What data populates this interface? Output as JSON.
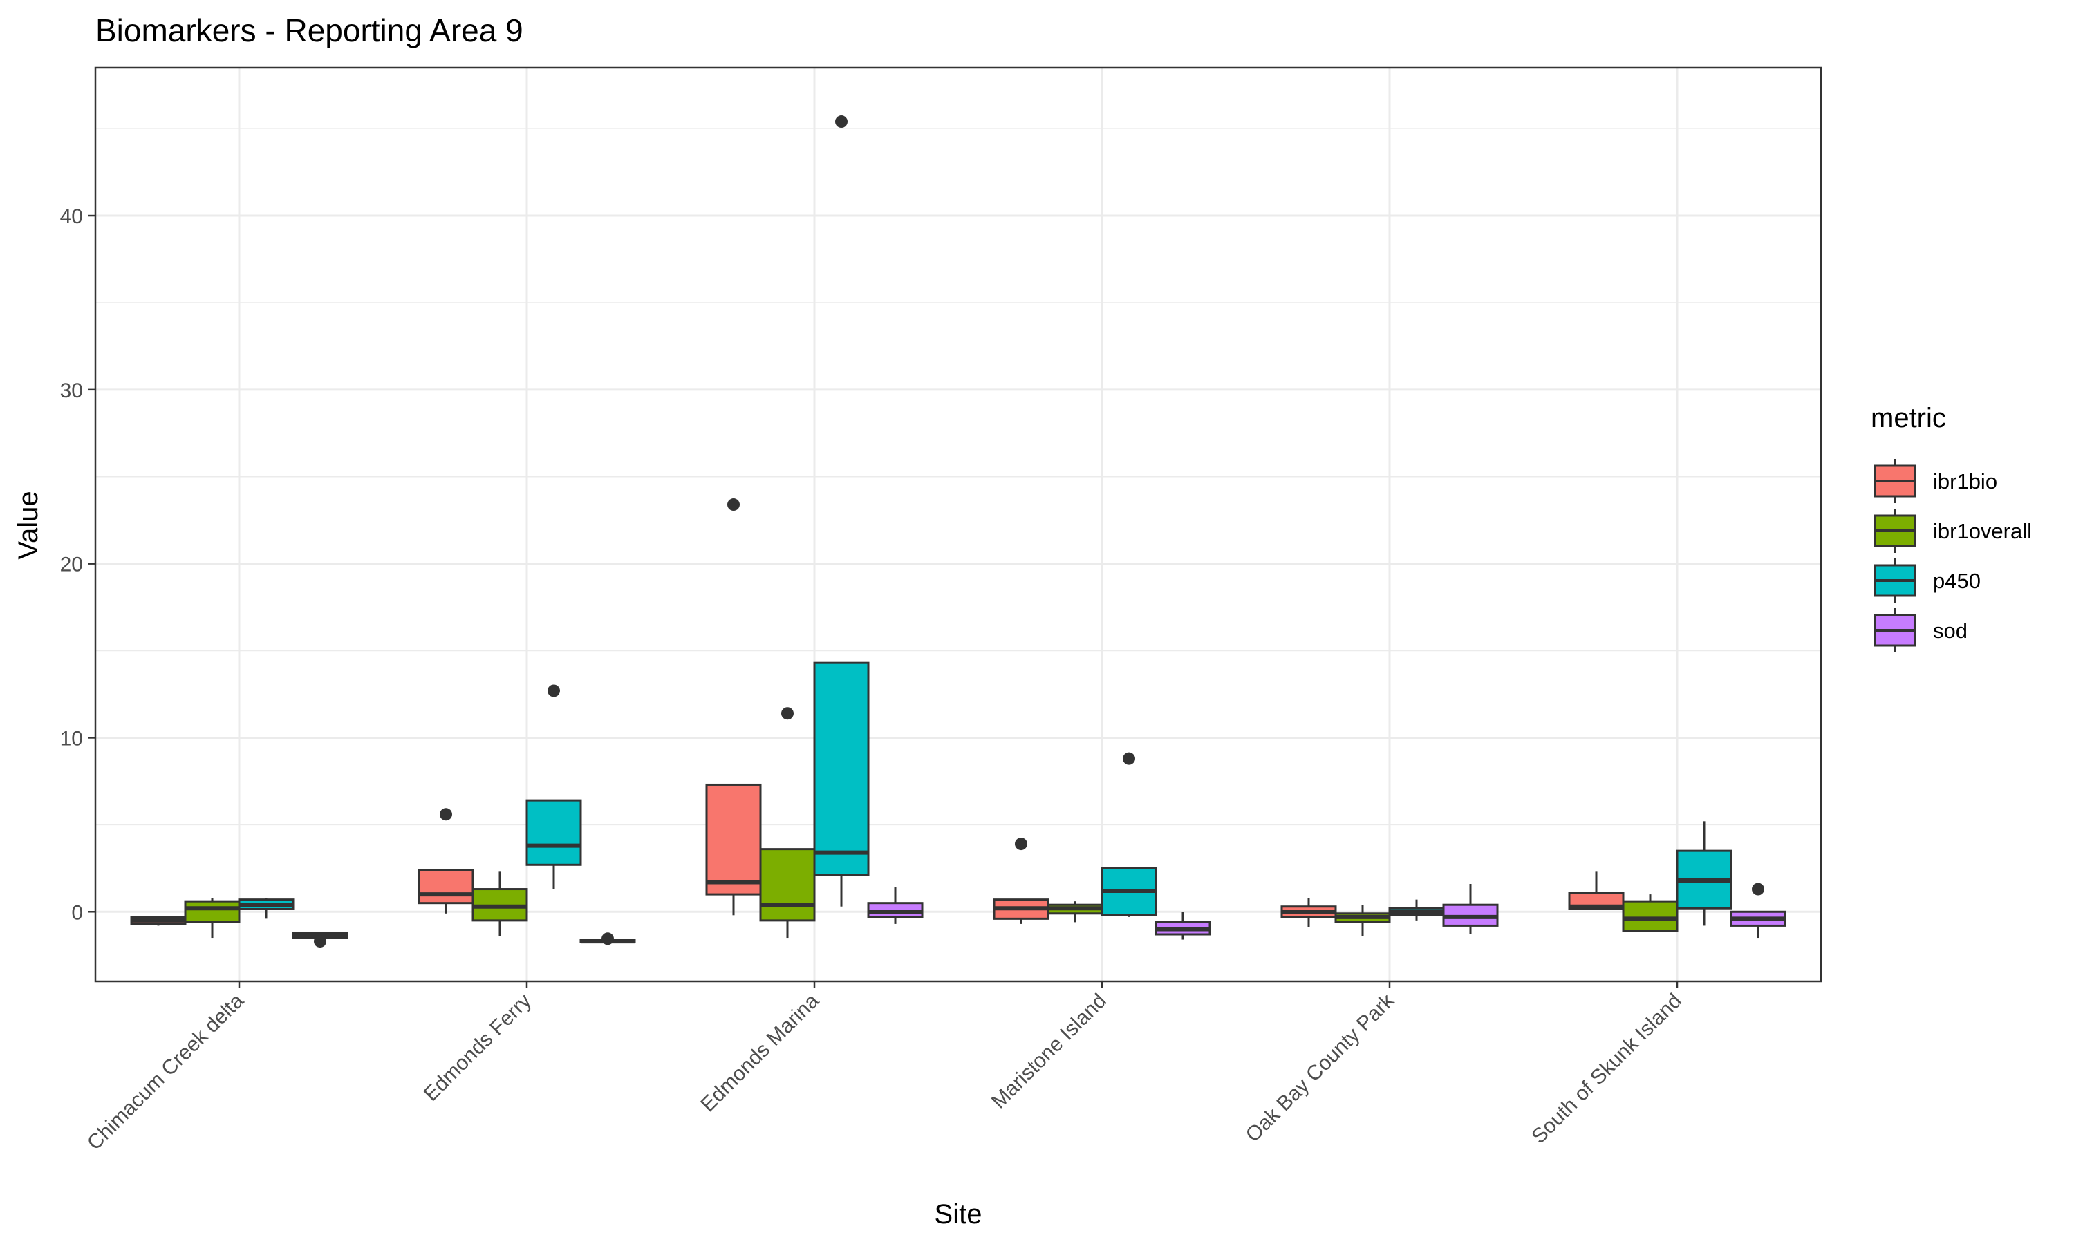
{
  "chart_data": {
    "type": "box",
    "title": "Biomarkers - Reporting Area 9",
    "xlabel": "Site",
    "ylabel": "Value",
    "ylim": [
      -4,
      48.5
    ],
    "yticks": [
      0,
      10,
      20,
      30,
      40
    ],
    "grid": true,
    "legend_position": "right",
    "legend_title": "metric",
    "categories": [
      "Chimacum Creek delta",
      "Edmonds Ferry",
      "Edmonds Marina",
      "Maristone Island",
      "Oak Bay County Park",
      "South of Skunk Island"
    ],
    "series": [
      {
        "name": "ibr1bio",
        "color": "#F8766D",
        "boxes": [
          {
            "whisker_low": -0.8,
            "q1": -0.7,
            "median": -0.5,
            "q3": -0.3,
            "whisker_high": -0.25,
            "outliers": []
          },
          {
            "whisker_low": -0.1,
            "q1": 0.5,
            "median": 1.0,
            "q3": 2.4,
            "whisker_high": 2.4,
            "outliers": [
              5.6
            ]
          },
          {
            "whisker_low": -0.2,
            "q1": 1.0,
            "median": 1.7,
            "q3": 7.3,
            "whisker_high": 7.3,
            "outliers": [
              23.4
            ]
          },
          {
            "whisker_low": -0.7,
            "q1": -0.4,
            "median": 0.2,
            "q3": 0.7,
            "whisker_high": 0.7,
            "outliers": [
              3.9
            ]
          },
          {
            "whisker_low": -0.9,
            "q1": -0.3,
            "median": 0.0,
            "q3": 0.3,
            "whisker_high": 0.8,
            "outliers": []
          },
          {
            "whisker_low": 0.1,
            "q1": 0.15,
            "median": 0.3,
            "q3": 1.1,
            "whisker_high": 2.3,
            "outliers": []
          }
        ]
      },
      {
        "name": "ibr1overall",
        "color": "#7CAE00",
        "boxes": [
          {
            "whisker_low": -1.5,
            "q1": -0.6,
            "median": 0.2,
            "q3": 0.6,
            "whisker_high": 0.8,
            "outliers": []
          },
          {
            "whisker_low": -1.4,
            "q1": -0.5,
            "median": 0.3,
            "q3": 1.3,
            "whisker_high": 2.3,
            "outliers": []
          },
          {
            "whisker_low": -1.5,
            "q1": -0.5,
            "median": 0.4,
            "q3": 3.6,
            "whisker_high": 3.6,
            "outliers": [
              11.4
            ]
          },
          {
            "whisker_low": -0.6,
            "q1": -0.1,
            "median": 0.2,
            "q3": 0.4,
            "whisker_high": 0.6,
            "outliers": []
          },
          {
            "whisker_low": -1.4,
            "q1": -0.6,
            "median": -0.3,
            "q3": -0.1,
            "whisker_high": 0.4,
            "outliers": []
          },
          {
            "whisker_low": -1.1,
            "q1": -1.1,
            "median": -0.4,
            "q3": 0.6,
            "whisker_high": 1.0,
            "outliers": []
          }
        ]
      },
      {
        "name": "p450",
        "color": "#00BFC4",
        "boxes": [
          {
            "whisker_low": -0.4,
            "q1": 0.15,
            "median": 0.4,
            "q3": 0.7,
            "whisker_high": 0.8,
            "outliers": []
          },
          {
            "whisker_low": 1.3,
            "q1": 2.7,
            "median": 3.8,
            "q3": 6.4,
            "whisker_high": 6.4,
            "outliers": [
              12.7
            ]
          },
          {
            "whisker_low": 0.3,
            "q1": 2.1,
            "median": 3.4,
            "q3": 14.3,
            "whisker_high": 14.3,
            "outliers": [
              45.4
            ]
          },
          {
            "whisker_low": -0.3,
            "q1": -0.2,
            "median": 1.2,
            "q3": 2.5,
            "whisker_high": 2.5,
            "outliers": [
              8.8
            ]
          },
          {
            "whisker_low": -0.5,
            "q1": -0.2,
            "median": 0.0,
            "q3": 0.2,
            "whisker_high": 0.7,
            "outliers": []
          },
          {
            "whisker_low": -0.8,
            "q1": 0.2,
            "median": 1.8,
            "q3": 3.5,
            "whisker_high": 5.2,
            "outliers": []
          }
        ]
      },
      {
        "name": "sod",
        "color": "#C77CFF",
        "boxes": [
          {
            "whisker_low": -1.5,
            "q1": -1.5,
            "median": -1.35,
            "q3": -1.2,
            "whisker_high": -1.2,
            "outliers": [
              -1.7
            ]
          },
          {
            "whisker_low": -1.8,
            "q1": -1.75,
            "median": -1.7,
            "q3": -1.6,
            "whisker_high": -1.55,
            "outliers": [
              -1.55
            ]
          },
          {
            "whisker_low": -0.7,
            "q1": -0.3,
            "median": 0.0,
            "q3": 0.5,
            "whisker_high": 1.4,
            "outliers": []
          },
          {
            "whisker_low": -1.6,
            "q1": -1.3,
            "median": -1.0,
            "q3": -0.6,
            "whisker_high": 0.0,
            "outliers": []
          },
          {
            "whisker_low": -1.3,
            "q1": -0.8,
            "median": -0.3,
            "q3": 0.4,
            "whisker_high": 1.6,
            "outliers": []
          },
          {
            "whisker_low": -1.5,
            "q1": -0.8,
            "median": -0.4,
            "q3": 0.0,
            "whisker_high": 0.0,
            "outliers": [
              1.3
            ]
          }
        ]
      }
    ]
  }
}
